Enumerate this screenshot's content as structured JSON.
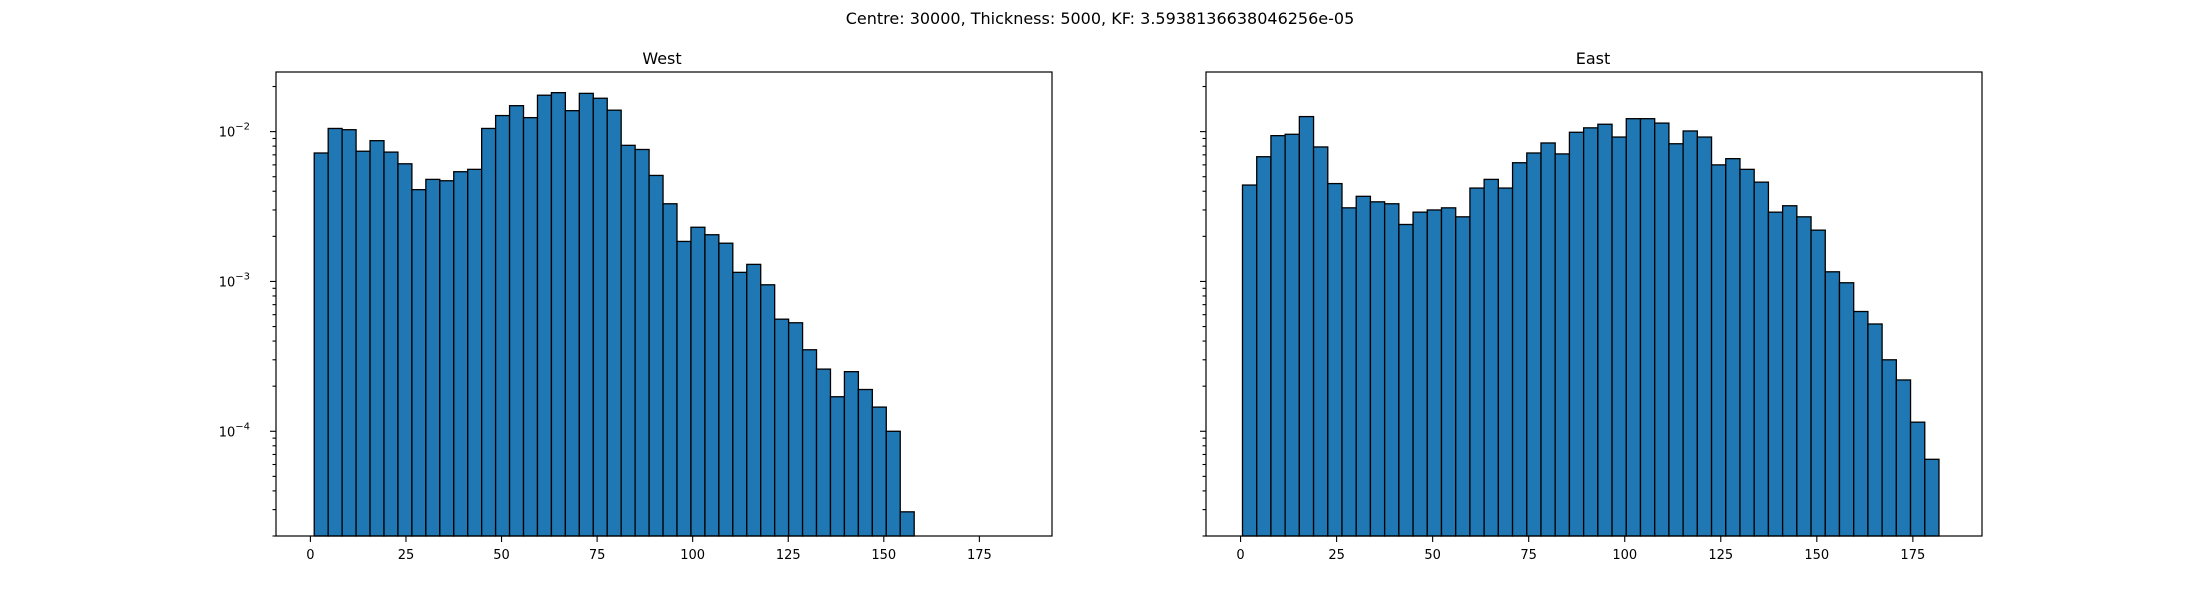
{
  "figure": {
    "suptitle": "Centre: 30000, Thickness: 5000, KF: 3.5938136638046256e-05"
  },
  "chart_data": [
    {
      "type": "bar",
      "subtype": "histogram",
      "title": "West",
      "xlabel": "",
      "ylabel": "",
      "yscale": "log",
      "xlim": [
        -9,
        194
      ],
      "ylim": [
        2e-05,
        0.025
      ],
      "grid": false,
      "x_ticks": [
        0,
        25,
        50,
        75,
        100,
        125,
        150,
        175
      ],
      "y_ticks": [
        {
          "value": 0.01,
          "label": "10",
          "exp": "−2"
        },
        {
          "value": 0.001,
          "label": "10",
          "exp": "−3"
        },
        {
          "value": 0.0001,
          "label": "10",
          "exp": "−4"
        }
      ],
      "bin_start": 1.0,
      "bin_width": 3.65,
      "values": [
        0.0072,
        0.0105,
        0.0103,
        0.0074,
        0.0087,
        0.0073,
        0.0061,
        0.0041,
        0.0048,
        0.0047,
        0.0054,
        0.0056,
        0.0105,
        0.0128,
        0.0149,
        0.0124,
        0.0175,
        0.0182,
        0.0138,
        0.018,
        0.0167,
        0.0139,
        0.0081,
        0.0076,
        0.0051,
        0.0033,
        0.00185,
        0.0023,
        0.00205,
        0.0018,
        0.00115,
        0.0013,
        0.00095,
        0.00056,
        0.00053,
        0.00035,
        0.00026,
        0.00017,
        0.00025,
        0.00019,
        0.000145,
        0.0001,
        2.9e-05
      ]
    },
    {
      "type": "bar",
      "subtype": "histogram",
      "title": "East",
      "xlabel": "",
      "ylabel": "",
      "yscale": "log",
      "xlim": [
        -9,
        193
      ],
      "ylim": [
        2e-05,
        0.025
      ],
      "grid": false,
      "sharey": true,
      "x_ticks": [
        0,
        25,
        50,
        75,
        100,
        125,
        150,
        175
      ],
      "bin_start": 0.5,
      "bin_width": 3.7,
      "values": [
        0.0044,
        0.0068,
        0.0094,
        0.0096,
        0.0126,
        0.0079,
        0.0045,
        0.0031,
        0.0037,
        0.0034,
        0.0033,
        0.0024,
        0.0029,
        0.003,
        0.0031,
        0.0027,
        0.0042,
        0.0048,
        0.0042,
        0.0062,
        0.0072,
        0.0084,
        0.0071,
        0.0099,
        0.0106,
        0.0112,
        0.0092,
        0.0122,
        0.0122,
        0.0114,
        0.0083,
        0.0101,
        0.0092,
        0.006,
        0.0066,
        0.0056,
        0.0046,
        0.0029,
        0.0032,
        0.0027,
        0.0022,
        0.00116,
        0.00098,
        0.00063,
        0.00052,
        0.0003,
        0.00022,
        0.000115,
        6.5e-05
      ]
    }
  ]
}
